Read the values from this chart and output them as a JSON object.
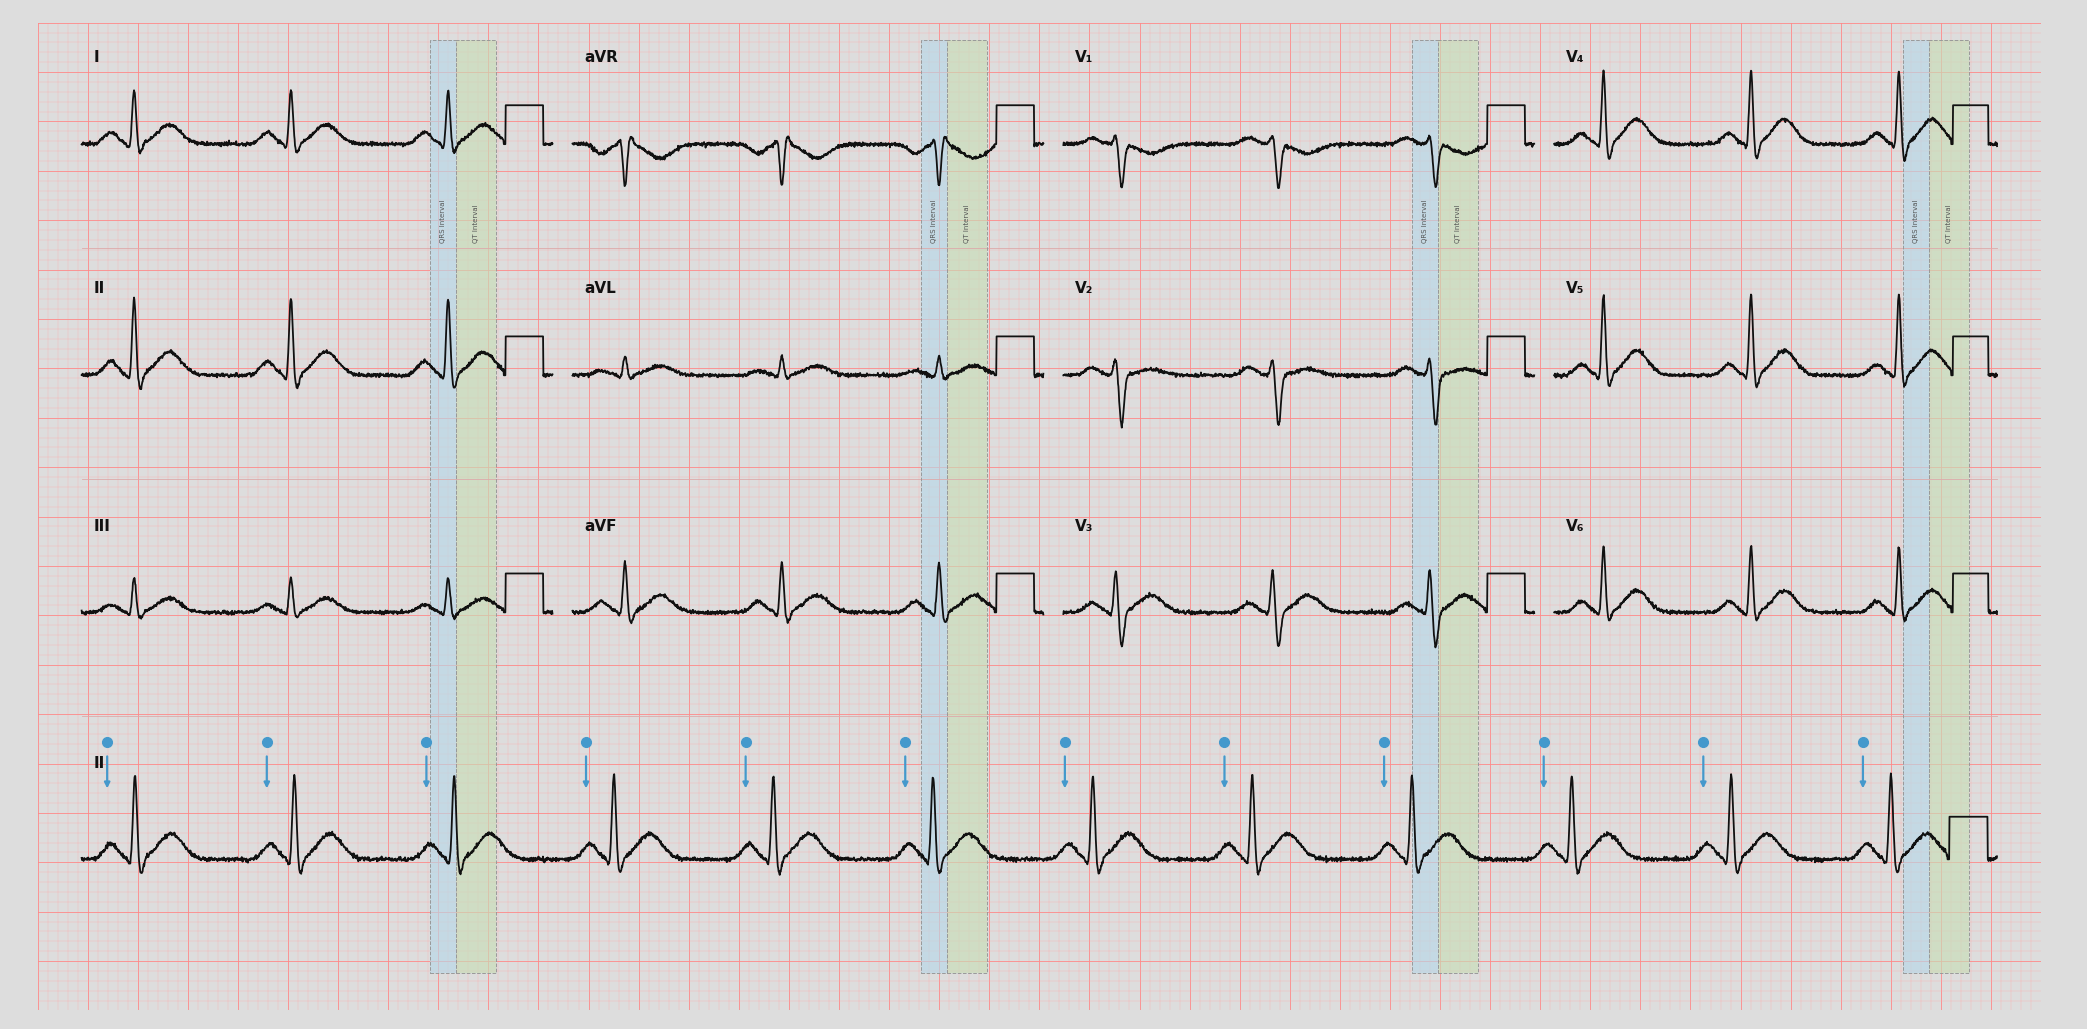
{
  "background_color": "#FFCCCC",
  "grid_minor_color": "#FFAAAA",
  "grid_major_color": "#FF8888",
  "ecg_color": "#111111",
  "leads_row1": [
    "I",
    "aVR",
    "V₁",
    "V₄"
  ],
  "leads_row2": [
    "II",
    "aVL",
    "V₂",
    "V₅"
  ],
  "leads_row3": [
    "III",
    "aVF",
    "V₃",
    "V₆"
  ],
  "leads_row4": [
    "II"
  ],
  "qrs_interval_color": "#B8D8E8",
  "qt_interval_color": "#C8DDB8",
  "interval_label_qrs": "QRS Interval",
  "interval_label_qt": "QT Interval",
  "arrow_color": "#4499CC",
  "fig_width": 20.87,
  "fig_height": 10.29,
  "outer_bg": "#DDDDDD",
  "paper_bg": "#FFDDDD",
  "shadow_color": "#BBBBBB"
}
